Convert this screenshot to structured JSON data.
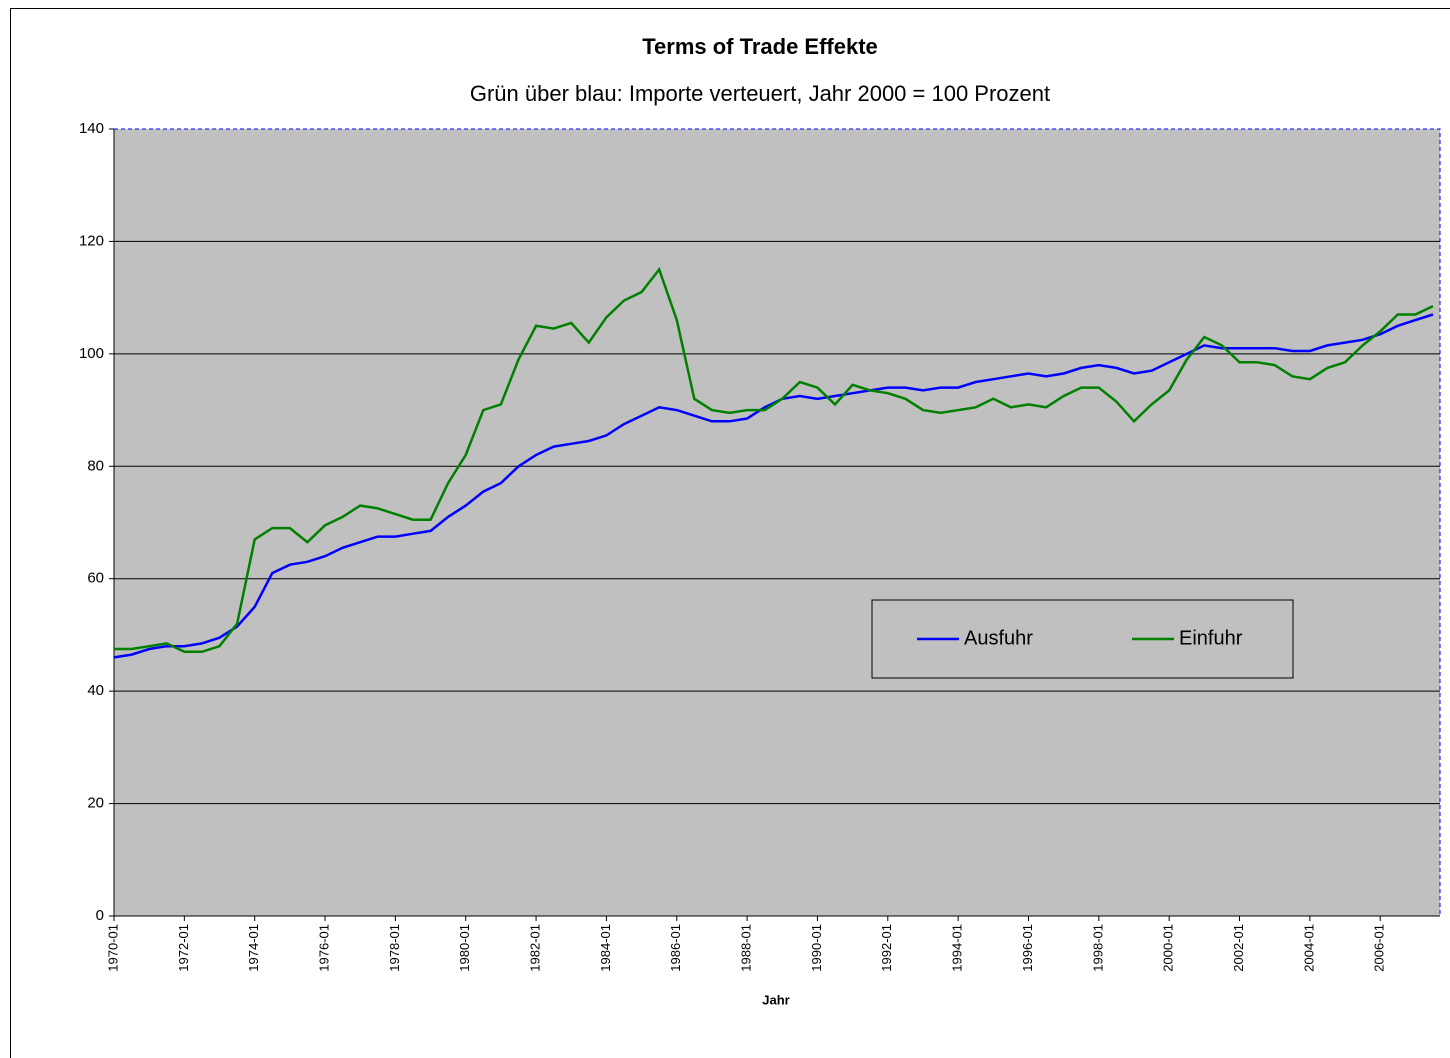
{
  "chart_data": {
    "type": "line",
    "title": "Terms of Trade Effekte",
    "subtitle": "Grün über blau: Importe verteuert, Jahr 2000 = 100 Prozent",
    "x_label": "Jahr",
    "categories": [
      "1970-01",
      null,
      null,
      null,
      "1972-01",
      null,
      null,
      null,
      "1974-01",
      null,
      null,
      null,
      "1976-01",
      null,
      null,
      null,
      "1978-01",
      null,
      null,
      null,
      "1980-01",
      null,
      null,
      null,
      "1982-01",
      null,
      null,
      null,
      "1984-01",
      null,
      null,
      null,
      "1986-01",
      null,
      null,
      null,
      "1988-01",
      null,
      null,
      null,
      "1990-01",
      null,
      null,
      null,
      "1992-01",
      null,
      null,
      null,
      "1994-01",
      null,
      null,
      null,
      "1996-01",
      null,
      null,
      null,
      "1998-01",
      null,
      null,
      null,
      "2000-01",
      null,
      null,
      null,
      "2002-01",
      null,
      null,
      null,
      "2004-01",
      null,
      null,
      null,
      "2006-01",
      null,
      null,
      null
    ],
    "series": [
      {
        "name": "Ausfuhr",
        "color": "#0000ff",
        "values": [
          46,
          46.5,
          47.5,
          48,
          48,
          48.5,
          49.5,
          51.5,
          55,
          61,
          62.5,
          63,
          64,
          65.5,
          66.5,
          67.5,
          67.5,
          68,
          68.5,
          71,
          73,
          75.5,
          77,
          80,
          82,
          83.5,
          84,
          84.5,
          85.5,
          87.5,
          89,
          90.5,
          90,
          89,
          88,
          88,
          88.5,
          90.5,
          92,
          92.5,
          92,
          92.5,
          93,
          93.5,
          94,
          94,
          93.5,
          94,
          94,
          95,
          95.5,
          96,
          96.5,
          96,
          96.5,
          97.5,
          98,
          97.5,
          96.5,
          97,
          98.5,
          100,
          101.5,
          101,
          101,
          101,
          101,
          100.5,
          100.5,
          101.5,
          102,
          102.5,
          103.5,
          105,
          106,
          107
        ]
      },
      {
        "name": "Einfuhr",
        "color": "#008000",
        "values": [
          47.5,
          47.5,
          48,
          48.5,
          47,
          47,
          48,
          52,
          67,
          69,
          69,
          66.5,
          69.5,
          71,
          73,
          72.5,
          71.5,
          70.5,
          70.5,
          77,
          82,
          90,
          91,
          99,
          105,
          104.5,
          105.5,
          102,
          106.5,
          109.5,
          111,
          115,
          106,
          92,
          90,
          89.5,
          90,
          90,
          92,
          95,
          94,
          91,
          94.5,
          93.5,
          93,
          92,
          90,
          89.5,
          90,
          90.5,
          92,
          90.5,
          91,
          90.5,
          92.5,
          94,
          94,
          91.5,
          88,
          91,
          93.5,
          99,
          103,
          101.5,
          98.5,
          98.5,
          98,
          96,
          95.5,
          97.5,
          98.5,
          101.5,
          104,
          107,
          107,
          108.5
        ]
      }
    ],
    "ylim": [
      0,
      140
    ],
    "yticks": [
      0,
      20,
      40,
      60,
      80,
      100,
      120,
      140
    ],
    "grid": true,
    "legend": "right",
    "plot_background": "#c0c0c0"
  }
}
